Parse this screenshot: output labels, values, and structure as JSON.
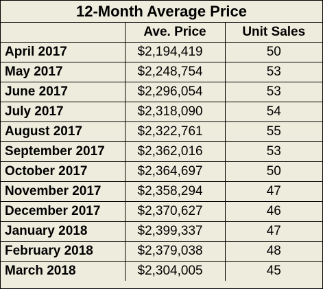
{
  "chart_data": {
    "type": "table",
    "title": "12-Month Average Price",
    "columns": [
      "",
      "Ave. Price",
      "Unit Sales"
    ],
    "rows": [
      {
        "month": "April 2017",
        "price": "$2,194,419",
        "units": "50"
      },
      {
        "month": "May 2017",
        "price": "$2,248,754",
        "units": "53"
      },
      {
        "month": "June 2017",
        "price": "$2,296,054",
        "units": "53"
      },
      {
        "month": "July 2017",
        "price": "$2,318,090",
        "units": "54"
      },
      {
        "month": "August 2017",
        "price": "$2,322,761",
        "units": "55"
      },
      {
        "month": "September 2017",
        "price": "$2,362,016",
        "units": "53"
      },
      {
        "month": "October 2017",
        "price": "$2,364,697",
        "units": "50"
      },
      {
        "month": "November 2017",
        "price": "$2,358,294",
        "units": "47"
      },
      {
        "month": "December 2017",
        "price": "$2,370,627",
        "units": "46"
      },
      {
        "month": "January 2018",
        "price": "$2,399,337",
        "units": "47"
      },
      {
        "month": "February 2018",
        "price": "$2,379,038",
        "units": "48"
      },
      {
        "month": "March 2018",
        "price": "$2,304,005",
        "units": "45"
      }
    ]
  },
  "colors": {
    "background": "#eeecdd",
    "border": "#000000",
    "text": "#000000"
  }
}
